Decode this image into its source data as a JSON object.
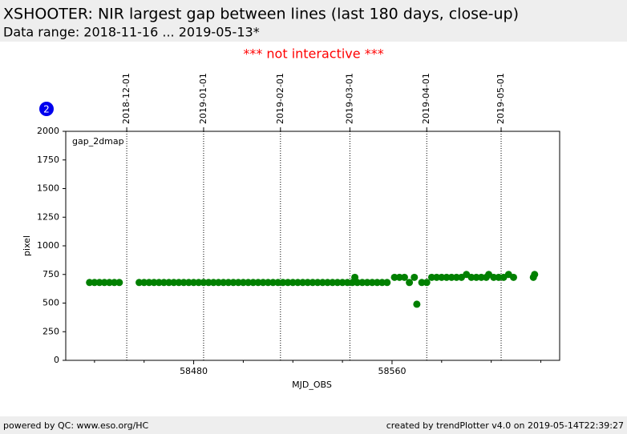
{
  "header": {
    "title": "XSHOOTER: NIR largest gap between lines (last 180 days, close-up)",
    "subtitle": "Data range: 2018-11-16 ... 2019-05-13*"
  },
  "notice": "*** not interactive ***",
  "badge": "2",
  "footer": {
    "left": "powered by QC: www.eso.org/HC",
    "right": "created by trendPlotter v4.0 on 2019-05-14T22:39:27"
  },
  "chart_data": {
    "type": "scatter",
    "xlabel": "MJD_OBS",
    "ylabel": "pixel",
    "series": [
      {
        "name": "gap_2dmap",
        "color": "#008000",
        "x": [
          58438,
          58440,
          58442,
          58444,
          58446,
          58448,
          58450,
          58458,
          58460,
          58462,
          58464,
          58466,
          58468,
          58470,
          58472,
          58474,
          58476,
          58478,
          58480,
          58482,
          58484,
          58486,
          58488,
          58490,
          58492,
          58494,
          58496,
          58498,
          58500,
          58502,
          58504,
          58506,
          58508,
          58510,
          58512,
          58514,
          58516,
          58518,
          58520,
          58522,
          58524,
          58526,
          58528,
          58530,
          58532,
          58534,
          58536,
          58538,
          58540,
          58542,
          58544,
          58546,
          58548,
          58550,
          58552,
          58554,
          58556,
          58558,
          58545,
          58561,
          58563,
          58565,
          58567,
          58569,
          58570,
          58572,
          58574,
          58576,
          58578,
          58580,
          58582,
          58584,
          58586,
          58588,
          58590,
          58592,
          58594,
          58596,
          58598,
          58599,
          58601,
          58603,
          58605,
          58607,
          58609,
          58617,
          58617.5
        ],
        "values": [
          680,
          680,
          680,
          680,
          680,
          680,
          680,
          680,
          680,
          680,
          680,
          680,
          680,
          680,
          680,
          680,
          680,
          680,
          680,
          680,
          680,
          680,
          680,
          680,
          680,
          680,
          680,
          680,
          680,
          680,
          680,
          680,
          680,
          680,
          680,
          680,
          680,
          680,
          680,
          680,
          680,
          680,
          680,
          680,
          680,
          680,
          680,
          680,
          680,
          680,
          680,
          680,
          680,
          680,
          680,
          680,
          680,
          680,
          725,
          725,
          725,
          725,
          680,
          725,
          490,
          680,
          680,
          725,
          725,
          725,
          725,
          725,
          725,
          725,
          750,
          725,
          725,
          725,
          725,
          750,
          725,
          725,
          725,
          750,
          725,
          725,
          750
        ]
      }
    ],
    "xlim": [
      58428.4,
      58627.6
    ],
    "xticks": [
      58480,
      58560
    ],
    "xminorticks": [
      58440,
      58460,
      58500,
      58520,
      58540,
      58580,
      58600,
      58620
    ],
    "topticks": [
      {
        "value": 58453,
        "label": "2018-12-01"
      },
      {
        "value": 58484,
        "label": "2019-01-01"
      },
      {
        "value": 58515,
        "label": "2019-02-01"
      },
      {
        "value": 58543,
        "label": "2019-03-01"
      },
      {
        "value": 58574,
        "label": "2019-04-01"
      },
      {
        "value": 58604,
        "label": "2019-05-01"
      }
    ],
    "ylim": [
      0,
      2000
    ],
    "yticks": [
      0,
      250,
      500,
      750,
      1000,
      1250,
      1500,
      1750,
      2000
    ]
  }
}
